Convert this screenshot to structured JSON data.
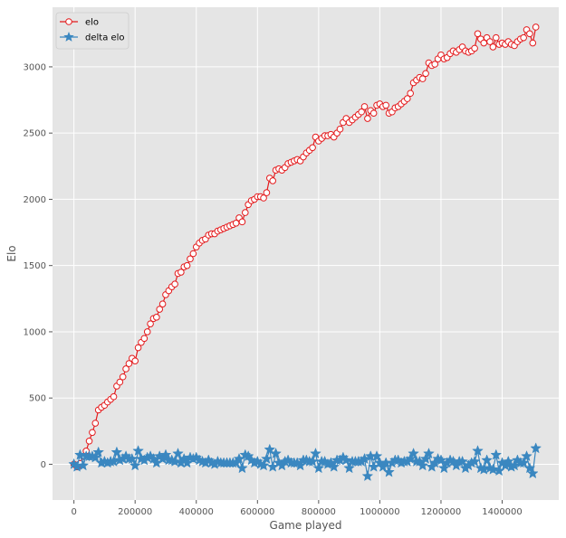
{
  "colors": {
    "background": "#e5e5e5",
    "grid": "#ffffff",
    "elo": "#e41a1c",
    "delta": "#3a87c0",
    "axis_text": "#555555"
  },
  "chart_data": {
    "type": "line",
    "title": "",
    "xlabel": "Game played",
    "ylabel": "Elo",
    "xlim": [
      -70000,
      1585000
    ],
    "ylim": [
      -270,
      3450
    ],
    "xticks": [
      0,
      200000,
      400000,
      600000,
      800000,
      1000000,
      1200000,
      1400000
    ],
    "xtick_labels": [
      "0",
      "200000",
      "400000",
      "600000",
      "800000",
      "1000000",
      "1200000",
      "1400000"
    ],
    "yticks": [
      0,
      500,
      1000,
      1500,
      2000,
      2500,
      3000
    ],
    "ytick_labels": [
      "0",
      "500",
      "1000",
      "1500",
      "2000",
      "2500",
      "3000"
    ],
    "grid": true,
    "legend": "upper-left",
    "series": [
      {
        "name": "elo",
        "marker": "circle",
        "x": [
          0,
          10000,
          20000,
          30000,
          40000,
          50000,
          60000,
          70000,
          80000,
          90000,
          100000,
          110000,
          120000,
          130000,
          140000,
          150000,
          160000,
          170000,
          180000,
          190000,
          200000,
          210000,
          220000,
          230000,
          240000,
          250000,
          260000,
          270000,
          280000,
          290000,
          300000,
          310000,
          320000,
          330000,
          340000,
          350000,
          360000,
          370000,
          380000,
          390000,
          400000,
          410000,
          420000,
          430000,
          440000,
          450000,
          460000,
          470000,
          480000,
          490000,
          500000,
          510000,
          520000,
          530000,
          540000,
          550000,
          560000,
          570000,
          580000,
          590000,
          600000,
          610000,
          620000,
          630000,
          640000,
          650000,
          660000,
          670000,
          680000,
          690000,
          700000,
          710000,
          720000,
          730000,
          740000,
          750000,
          760000,
          770000,
          780000,
          790000,
          800000,
          810000,
          820000,
          830000,
          840000,
          850000,
          860000,
          870000,
          880000,
          890000,
          900000,
          910000,
          920000,
          930000,
          940000,
          950000,
          960000,
          970000,
          980000,
          990000,
          1000000,
          1010000,
          1020000,
          1030000,
          1040000,
          1050000,
          1060000,
          1070000,
          1080000,
          1090000,
          1100000,
          1110000,
          1120000,
          1130000,
          1140000,
          1150000,
          1160000,
          1170000,
          1180000,
          1190000,
          1200000,
          1210000,
          1220000,
          1230000,
          1240000,
          1250000,
          1260000,
          1270000,
          1280000,
          1290000,
          1300000,
          1310000,
          1320000,
          1330000,
          1340000,
          1350000,
          1360000,
          1370000,
          1380000,
          1390000,
          1400000,
          1410000,
          1420000,
          1430000,
          1440000,
          1450000,
          1460000,
          1470000,
          1480000,
          1490000,
          1500000,
          1510000
        ],
        "values": [
          0,
          -20,
          5,
          60,
          100,
          175,
          240,
          310,
          410,
          430,
          445,
          470,
          490,
          510,
          590,
          620,
          660,
          720,
          760,
          800,
          780,
          880,
          920,
          950,
          1000,
          1060,
          1100,
          1110,
          1170,
          1210,
          1280,
          1310,
          1340,
          1360,
          1440,
          1450,
          1490,
          1500,
          1550,
          1590,
          1640,
          1670,
          1690,
          1700,
          1730,
          1740,
          1740,
          1760,
          1770,
          1780,
          1790,
          1800,
          1810,
          1820,
          1860,
          1830,
          1900,
          1960,
          1990,
          2000,
          2020,
          2020,
          2010,
          2050,
          2160,
          2140,
          2220,
          2230,
          2220,
          2240,
          2270,
          2280,
          2290,
          2300,
          2290,
          2320,
          2350,
          2370,
          2390,
          2470,
          2440,
          2460,
          2480,
          2480,
          2490,
          2470,
          2500,
          2530,
          2580,
          2610,
          2580,
          2600,
          2620,
          2640,
          2660,
          2700,
          2610,
          2670,
          2650,
          2710,
          2720,
          2700,
          2710,
          2650,
          2660,
          2690,
          2700,
          2720,
          2740,
          2760,
          2800,
          2880,
          2900,
          2920,
          2910,
          2950,
          3030,
          3010,
          3020,
          3060,
          3090,
          3060,
          3070,
          3100,
          3120,
          3110,
          3130,
          3150,
          3120,
          3110,
          3120,
          3140,
          3250,
          3210,
          3180,
          3220,
          3190,
          3150,
          3220,
          3170,
          3180,
          3170,
          3190,
          3170,
          3160,
          3190,
          3210,
          3220,
          3280,
          3250,
          3180,
          3300
        ]
      },
      {
        "name": "delta elo",
        "marker": "star",
        "x": [
          0,
          10000,
          20000,
          30000,
          40000,
          50000,
          60000,
          70000,
          80000,
          90000,
          100000,
          110000,
          120000,
          130000,
          140000,
          150000,
          160000,
          170000,
          180000,
          190000,
          200000,
          210000,
          220000,
          230000,
          240000,
          250000,
          260000,
          270000,
          280000,
          290000,
          300000,
          310000,
          320000,
          330000,
          340000,
          350000,
          360000,
          370000,
          380000,
          390000,
          400000,
          410000,
          420000,
          430000,
          440000,
          450000,
          460000,
          470000,
          480000,
          490000,
          500000,
          510000,
          520000,
          530000,
          540000,
          550000,
          560000,
          570000,
          580000,
          590000,
          600000,
          610000,
          620000,
          630000,
          640000,
          650000,
          660000,
          670000,
          680000,
          690000,
          700000,
          710000,
          720000,
          730000,
          740000,
          750000,
          760000,
          770000,
          780000,
          790000,
          800000,
          810000,
          820000,
          830000,
          840000,
          850000,
          860000,
          870000,
          880000,
          890000,
          900000,
          910000,
          920000,
          930000,
          940000,
          950000,
          960000,
          970000,
          980000,
          990000,
          1000000,
          1010000,
          1020000,
          1030000,
          1040000,
          1050000,
          1060000,
          1070000,
          1080000,
          1090000,
          1100000,
          1110000,
          1120000,
          1130000,
          1140000,
          1150000,
          1160000,
          1170000,
          1180000,
          1190000,
          1200000,
          1210000,
          1220000,
          1230000,
          1240000,
          1250000,
          1260000,
          1270000,
          1280000,
          1290000,
          1300000,
          1310000,
          1320000,
          1330000,
          1340000,
          1350000,
          1360000,
          1370000,
          1380000,
          1390000,
          1400000,
          1410000,
          1420000,
          1430000,
          1440000,
          1450000,
          1460000,
          1470000,
          1480000,
          1490000,
          1500000,
          1510000
        ],
        "values": [
          0,
          -20,
          70,
          -10,
          60,
          60,
          60,
          50,
          90,
          10,
          20,
          10,
          20,
          20,
          90,
          30,
          40,
          60,
          40,
          40,
          -10,
          100,
          40,
          30,
          50,
          60,
          40,
          10,
          60,
          40,
          70,
          30,
          30,
          20,
          80,
          10,
          40,
          10,
          50,
          40,
          50,
          30,
          20,
          10,
          30,
          10,
          0,
          20,
          10,
          10,
          10,
          10,
          10,
          10,
          40,
          -30,
          70,
          60,
          30,
          10,
          20,
          0,
          -10,
          40,
          110,
          -20,
          80,
          10,
          -10,
          20,
          30,
          10,
          10,
          10,
          -10,
          30,
          30,
          20,
          20,
          80,
          -30,
          20,
          20,
          0,
          10,
          -20,
          30,
          30,
          50,
          30,
          -30,
          20,
          20,
          20,
          20,
          40,
          -90,
          60,
          -20,
          60,
          10,
          -20,
          10,
          -60,
          10,
          30,
          30,
          10,
          20,
          20,
          40,
          80,
          20,
          20,
          -10,
          40,
          80,
          -20,
          10,
          40,
          30,
          -30,
          10,
          30,
          20,
          -10,
          20,
          20,
          -30,
          -10,
          10,
          20,
          100,
          -30,
          -40,
          30,
          -30,
          -40,
          70,
          -50,
          10,
          -10,
          20,
          -20,
          -10,
          30,
          10,
          10,
          60,
          -30,
          -70,
          120
        ]
      }
    ]
  }
}
